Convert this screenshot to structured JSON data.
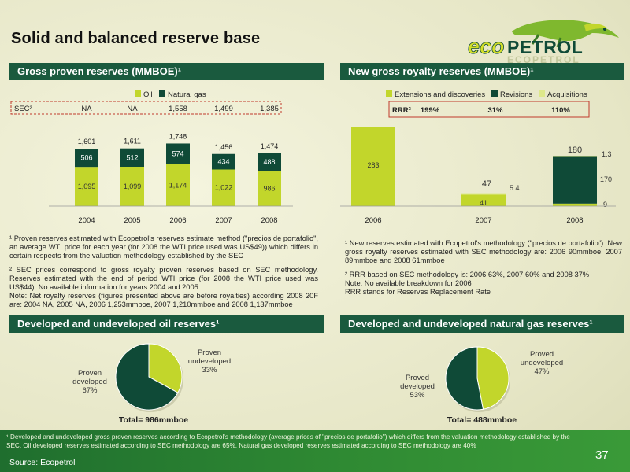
{
  "page": {
    "title": "Solid and balanced reserve base",
    "logo_text_top": "ecopetrol",
    "logo_text_bottom": "ECOPETROL",
    "page_number": "37",
    "source": "Source: Ecopetrol",
    "footnote": "¹ Developed and undeveloped gross proven reserves according to Ecopetrol's methodology (average prices of \"precios de portafolio\") which differs from the valuation methodology established by the SEC. Oil developed reserves estimated according to SEC methodology are 65%.  Natural gas developed reserves estimated according to SEC methodology are 40%"
  },
  "colors": {
    "dark_green": "#0f4a37",
    "light_green": "#c2d62b",
    "header_green": "#1a5a3e",
    "red_box": "#c0392b"
  },
  "panels": {
    "gross": {
      "header": "Gross proven reserves (MMBOE)¹",
      "notes": [
        "¹ Proven reserves estimated with Ecopetrol's reserves estimate method (\"precios de portafolio\", an average WTI price for each year (for 2008 the WTI price used was US$49)) which differs in certain respects from the valuation methodology established by the SEC",
        "² SEC prices correspond to gross royalty proven reserves based on SEC methodology. Reserves estimated with the end of period WTI price (for 2008 the WTI price used was US$44). No available information for years 2004 and 2005",
        "Note: Net royalty reserves (figures presented above are before royalties) according 2008 20F are: 2004 NA, 2005 NA, 2006 1,253mmboe, 2007 1,210mmboe and 2008 1,137mmboe"
      ]
    },
    "royalty": {
      "header": "New gross royalty reserves (MMBOE)¹",
      "notes": [
        "¹ New reserves estimated with Ecopetrol's methodology (\"precios de portafolio\"). New gross royalty reserves estimated with SEC methodology are: 2006 90mmboe, 2007 89mmboe and 2008 61mmboe",
        "² RRR based on SEC methodology is: 2006 63%, 2007 60% and 2008 37%",
        "Note: No available breakdown for 2006",
        "RRR stands for Reserves Replacement Rate"
      ]
    },
    "oil": {
      "header": "Developed and undeveloped oil reserves¹"
    },
    "gas": {
      "header": "Developed and undeveloped natural gas reserves¹"
    }
  },
  "chart_data": [
    {
      "type": "bar",
      "stacked": true,
      "categories": [
        "2004",
        "2005",
        "2006",
        "2007",
        "2008"
      ],
      "series": [
        {
          "name": "Oil",
          "color": "#c2d62b",
          "values": [
            1095,
            1099,
            1174,
            1022,
            986
          ],
          "labels": [
            "1,095",
            "1,099",
            "1,174",
            "1,022",
            "986"
          ]
        },
        {
          "name": "Natural gas",
          "color": "#0f4a37",
          "values": [
            506,
            512,
            574,
            434,
            488
          ],
          "labels": [
            "506",
            "512",
            "574",
            "434",
            "488"
          ]
        }
      ],
      "totals": [
        "1,601",
        "1,611",
        "1,748",
        "1,456",
        "1,474"
      ],
      "sec_row": {
        "label": "SEC²",
        "values": [
          "NA",
          "NA",
          "1,558",
          "1,499",
          "1,385"
        ]
      },
      "legend": "top"
    },
    {
      "type": "bar",
      "stacked": true,
      "categories": [
        "2006",
        "2007",
        "2008"
      ],
      "series": [
        {
          "name": "Extensions and discoveries",
          "color": "#c2d62b",
          "values": [
            283,
            41,
            9
          ],
          "labels": [
            "283",
            "41",
            "9"
          ]
        },
        {
          "name": "Revisions",
          "color": "#0f4a37",
          "values": [
            0,
            0,
            170
          ],
          "labels": [
            "",
            "",
            "170"
          ]
        },
        {
          "name": "Acquisitions",
          "color": "#dde88a",
          "values": [
            0,
            5.4,
            1.3
          ],
          "labels": [
            "",
            "5.4",
            "1.3"
          ]
        }
      ],
      "totals": [
        "",
        "47",
        "180"
      ],
      "rrr_row": {
        "label": "RRR²",
        "values": [
          "199%",
          "31%",
          "110%"
        ]
      },
      "legend": "top"
    },
    {
      "type": "pie",
      "slices": [
        {
          "label": "Proven developed",
          "value": 67,
          "pct": "67%",
          "color": "#0f4a37"
        },
        {
          "label": "Proven undeveloped",
          "value": 33,
          "pct": "33%",
          "color": "#c2d62b"
        }
      ],
      "total": "Total= 986mmboe"
    },
    {
      "type": "pie",
      "slices": [
        {
          "label": "Proved developed",
          "value": 53,
          "pct": "53%",
          "color": "#0f4a37"
        },
        {
          "label": "Proved undeveloped",
          "value": 47,
          "pct": "47%",
          "color": "#c2d62b"
        }
      ],
      "total": "Total= 488mmboe"
    }
  ]
}
